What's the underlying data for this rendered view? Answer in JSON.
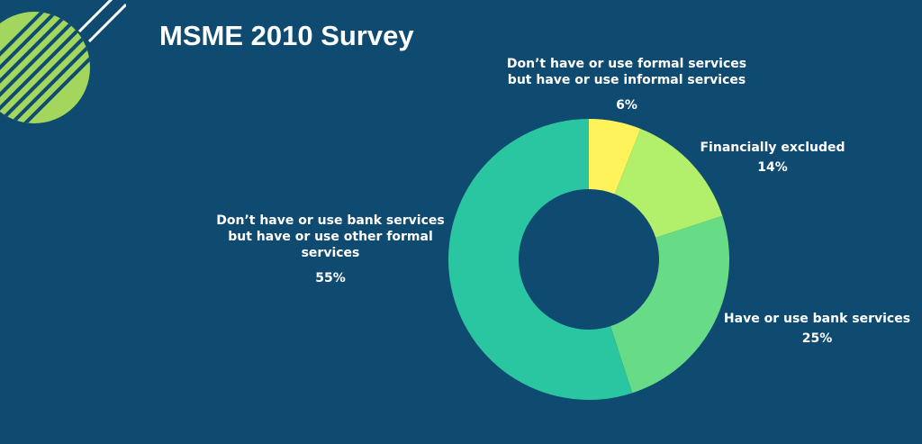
{
  "title": "MSME 2010 Survey",
  "colors": {
    "background": "#0f4a70",
    "decoration": "#a3d65c"
  },
  "chart_data": {
    "type": "pie",
    "donut": true,
    "title": "MSME 2010 Survey",
    "slices": [
      {
        "label": "Don’t have or use formal services\nbut have or use informal services",
        "value": 6,
        "value_label": "6%",
        "color": "#fff35c"
      },
      {
        "label": "Financially excluded",
        "value": 14,
        "value_label": "14%",
        "color": "#b2ef6a"
      },
      {
        "label": "Have or use bank services",
        "value": 25,
        "value_label": "25%",
        "color": "#68db86"
      },
      {
        "label": "Don’t have or use bank services\nbut have or use other formal\nservices",
        "value": 55,
        "value_label": "55%",
        "color": "#2ac6a1"
      }
    ]
  }
}
